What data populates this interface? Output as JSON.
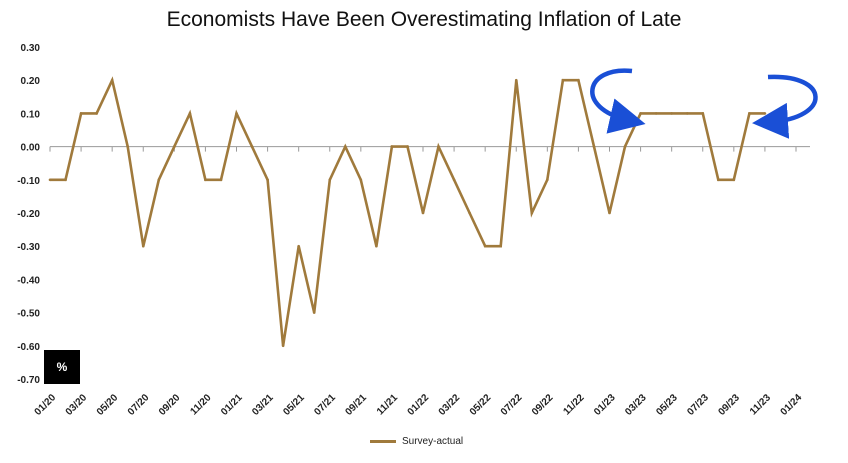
{
  "chart_data": {
    "type": "line",
    "title": "Economists Have Been Overestimating Inflation of Late",
    "unit_label": "%",
    "x": [
      "01/20",
      "02/20",
      "03/20",
      "04/20",
      "05/20",
      "06/20",
      "07/20",
      "08/20",
      "09/20",
      "10/20",
      "11/20",
      "12/20",
      "01/21",
      "02/21",
      "03/21",
      "04/21",
      "05/21",
      "06/21",
      "07/21",
      "08/21",
      "09/21",
      "10/21",
      "11/21",
      "12/21",
      "01/22",
      "02/22",
      "03/22",
      "04/22",
      "05/22",
      "06/22",
      "07/22",
      "08/22",
      "09/22",
      "10/22",
      "11/22",
      "12/22",
      "01/23",
      "02/23",
      "03/23",
      "04/23",
      "05/23",
      "06/23",
      "07/23",
      "08/23",
      "09/23",
      "10/23",
      "11/23",
      "12/23"
    ],
    "x_tick_labels": [
      "01/20",
      "03/20",
      "05/20",
      "07/20",
      "09/20",
      "11/20",
      "01/21",
      "03/21",
      "05/21",
      "07/21",
      "09/21",
      "11/21",
      "01/22",
      "03/22",
      "05/22",
      "07/22",
      "09/22",
      "11/22",
      "01/23",
      "03/23",
      "05/23",
      "07/23",
      "09/23",
      "11/23",
      "01/24"
    ],
    "series": [
      {
        "name": "Survey-actual",
        "color": "#a07a3c",
        "values": [
          -0.1,
          -0.1,
          0.1,
          0.1,
          0.2,
          0.0,
          -0.3,
          -0.1,
          0.0,
          0.1,
          -0.1,
          -0.1,
          0.1,
          0.0,
          -0.1,
          -0.6,
          -0.3,
          -0.5,
          -0.1,
          0.0,
          -0.1,
          -0.3,
          0.0,
          0.0,
          -0.2,
          0.0,
          -0.1,
          -0.2,
          -0.3,
          -0.3,
          0.2,
          -0.2,
          -0.1,
          0.2,
          0.2,
          0.0,
          -0.2,
          0.0,
          0.1,
          0.1,
          0.1,
          0.1,
          0.1,
          -0.1,
          -0.1,
          0.1,
          0.1,
          null
        ]
      }
    ],
    "ylim": [
      -0.7,
      0.3
    ],
    "y_tick_labels": [
      "0.30",
      "0.20",
      "0.10",
      "0.00",
      "-0.10",
      "-0.20",
      "-0.30",
      "-0.40",
      "-0.50",
      "-0.60",
      "-0.70"
    ],
    "legend_position": "bottom",
    "arrow_color": "#1a4fd6",
    "grid": false
  }
}
